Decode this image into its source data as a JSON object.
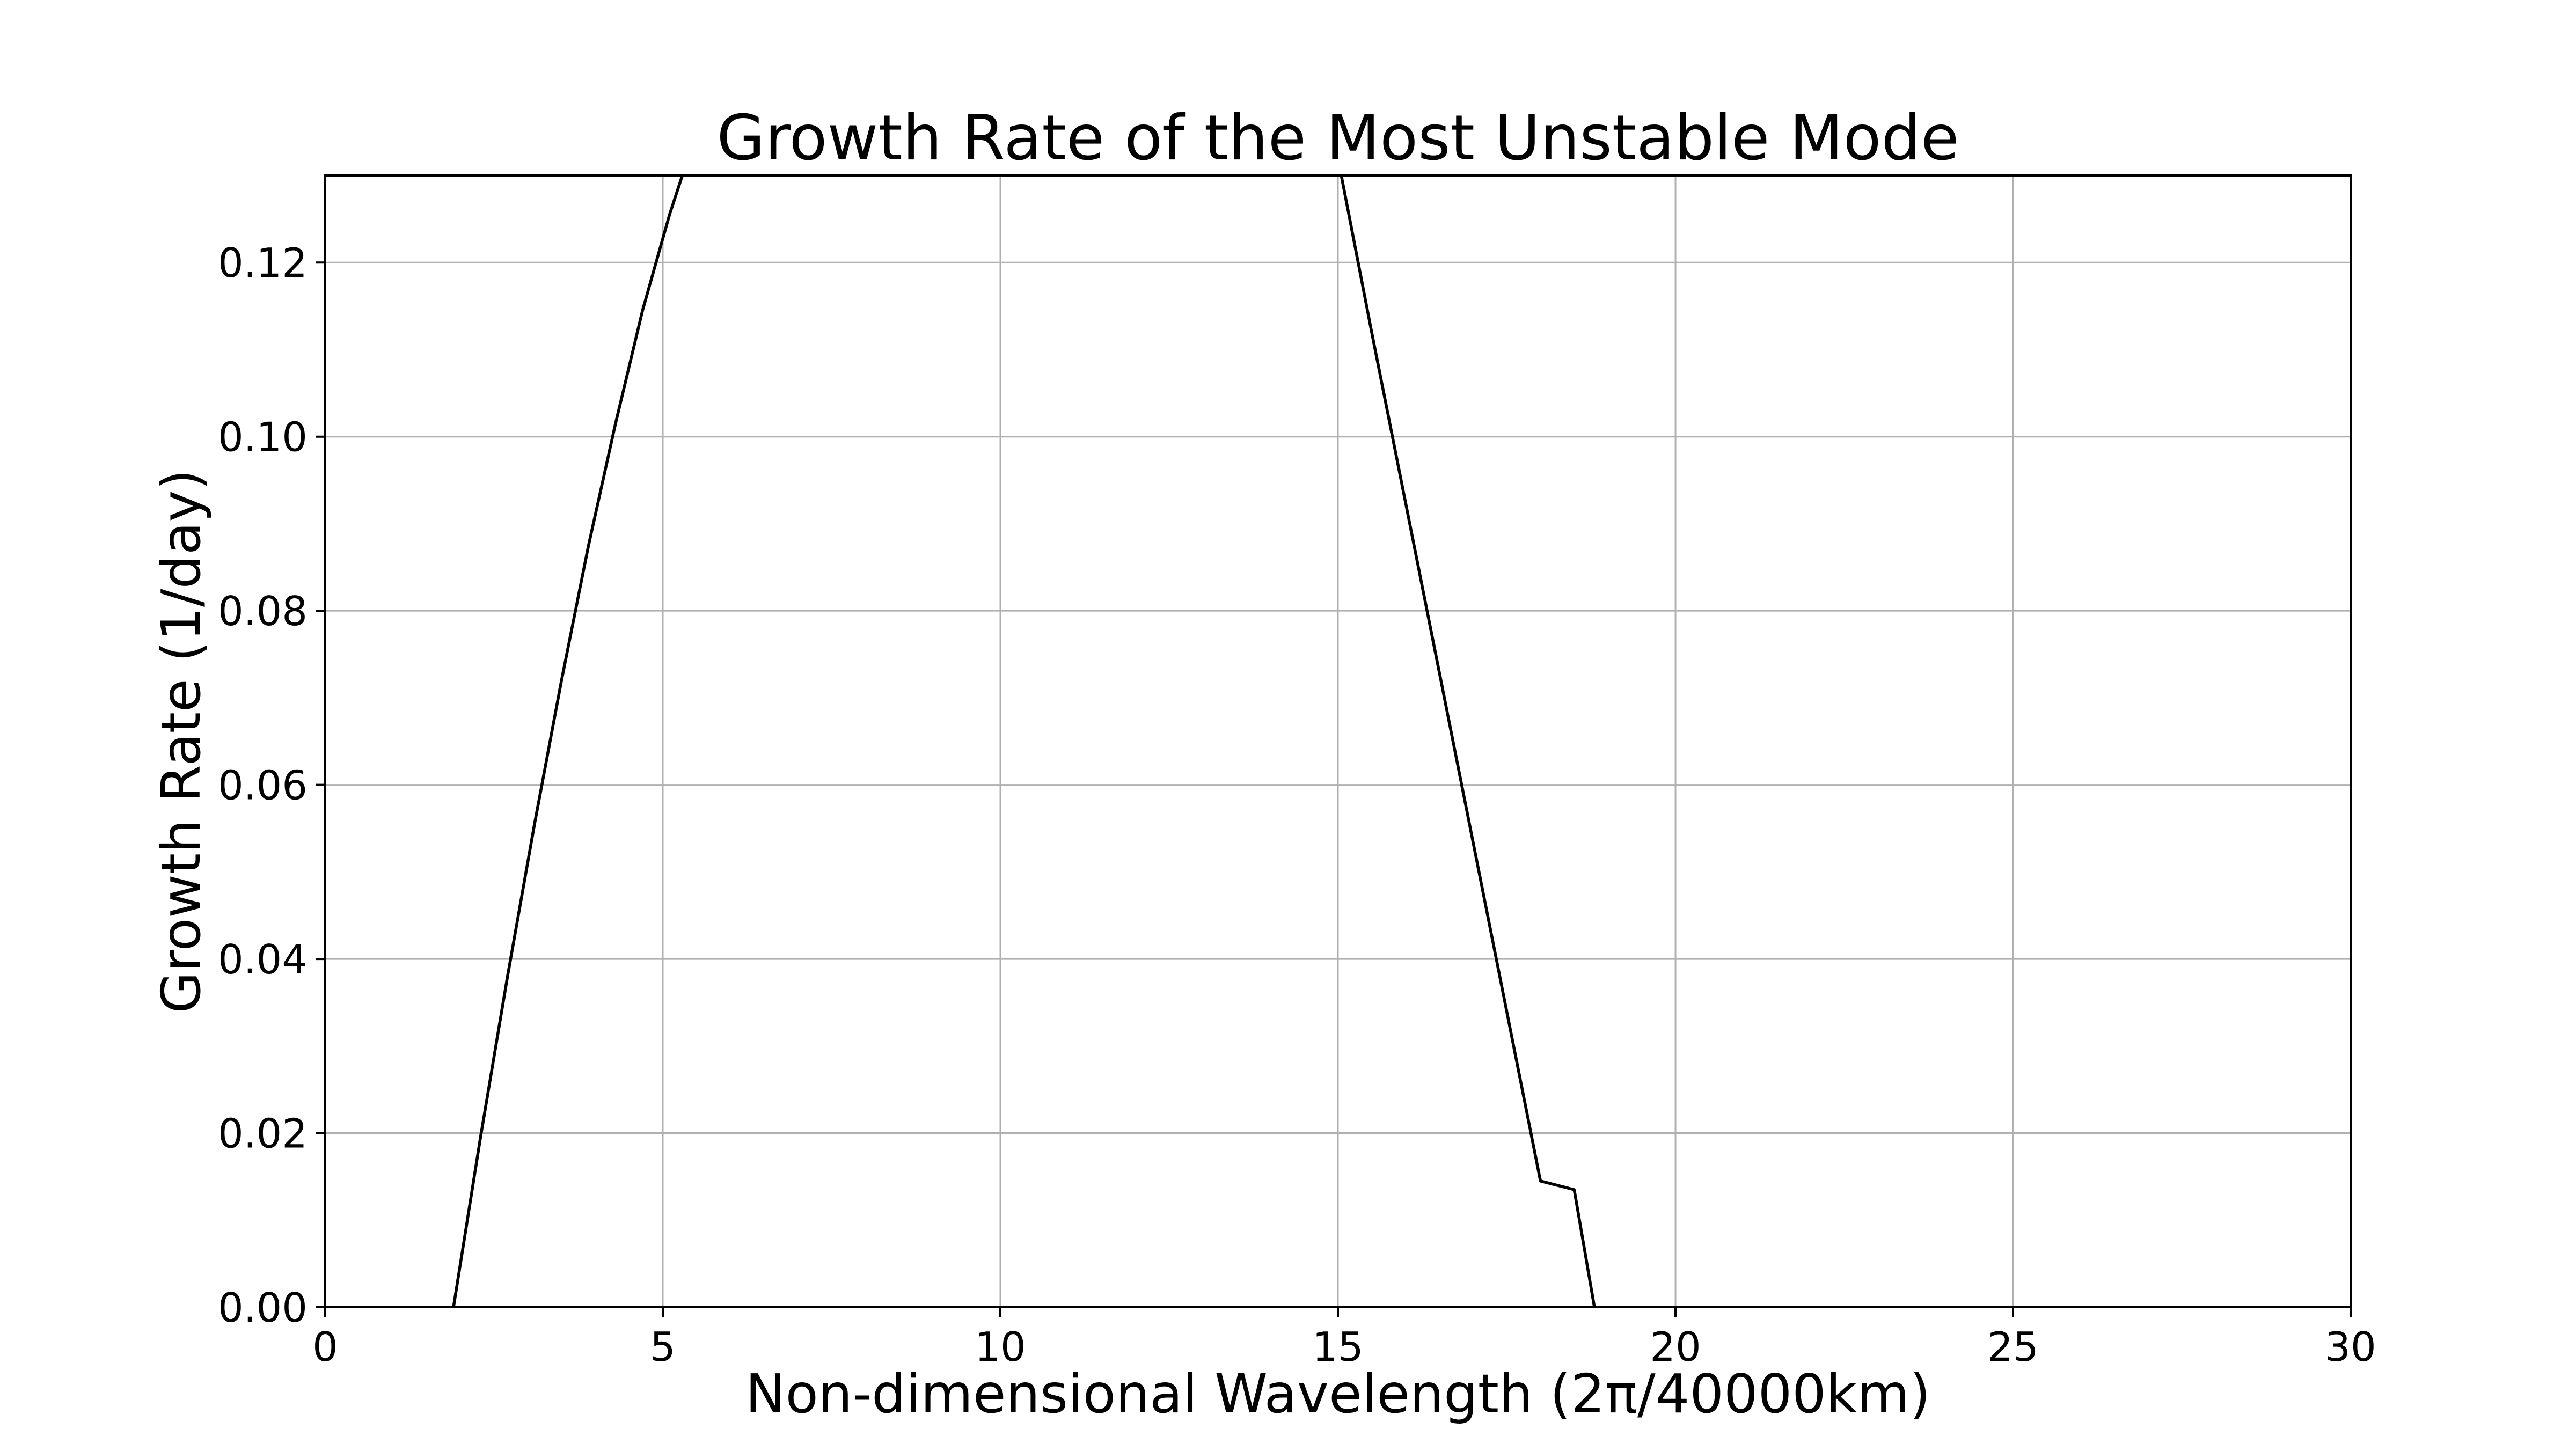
{
  "chart_data": {
    "type": "line",
    "title": "Growth Rate of the Most Unstable Mode",
    "xlabel": "Non-dimensional Wavelength (2π/40000km)",
    "ylabel": "Growth Rate (1/day)",
    "xlim": [
      0,
      30
    ],
    "ylim": [
      0,
      0.13
    ],
    "grid": true,
    "legend": "none",
    "line_color": "#000000",
    "x_ticks": [
      "0",
      "5",
      "10",
      "15",
      "20",
      "25",
      "30"
    ],
    "y_ticks": [
      "0.00",
      "0.02",
      "0.04",
      "0.06",
      "0.08",
      "0.10",
      "0.12"
    ],
    "series": [
      {
        "x": [
          1.9,
          2.3,
          2.7,
          3.1,
          3.5,
          3.9,
          4.3,
          4.7,
          5.1,
          5.5,
          5.87
        ],
        "y": [
          0.0,
          0.0195,
          0.038,
          0.0555,
          0.072,
          0.0875,
          0.1015,
          0.1145,
          0.1255,
          0.135,
          0.13
        ]
      },
      {
        "x": [
          15.05,
          15.5,
          16.0,
          16.5,
          17.0,
          17.5,
          18.0,
          18.5,
          18.8
        ],
        "y": [
          0.13,
          0.112,
          0.0925,
          0.073,
          0.0535,
          0.034,
          0.0145,
          0.0135,
          0.0
        ]
      }
    ]
  }
}
